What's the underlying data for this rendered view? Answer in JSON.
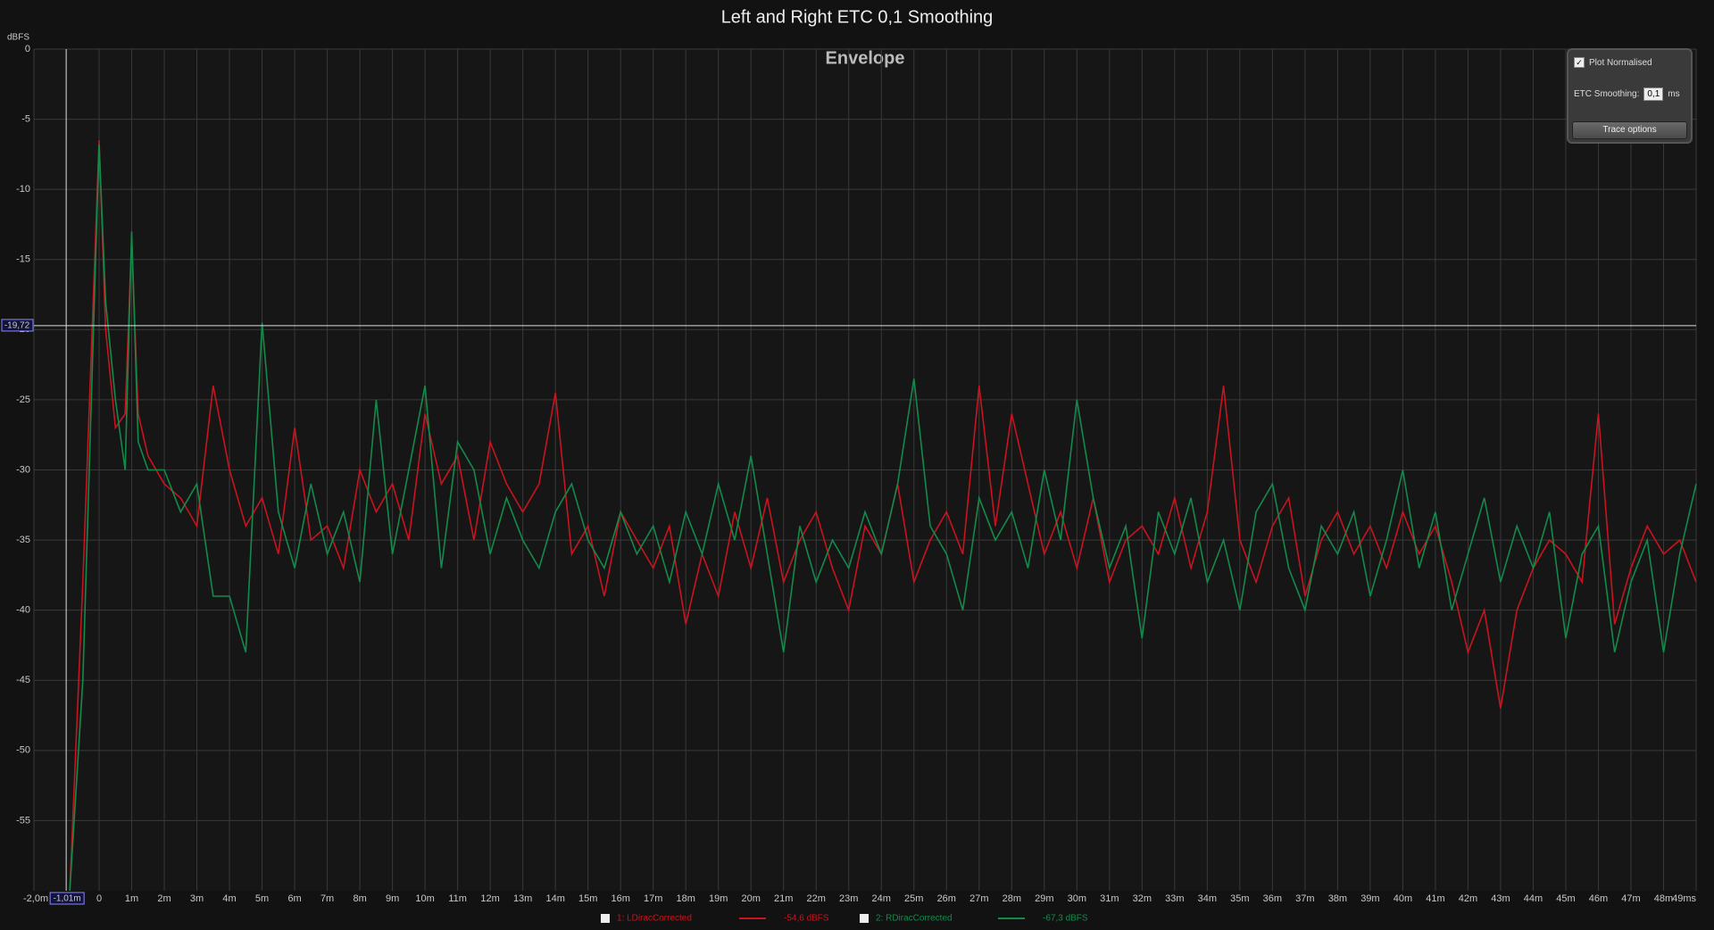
{
  "chart_data": {
    "type": "line",
    "title": "Left and Right ETC 0,1 Smoothing",
    "subtitle": "Envelope",
    "y_label": "dBFS",
    "x": [
      -0.9,
      -0.5,
      0,
      0.2,
      0.5,
      0.8,
      1.0,
      1.2,
      1.5,
      2,
      2.5,
      3,
      3.5,
      4,
      4.5,
      5,
      5.5,
      6,
      6.5,
      7,
      7.5,
      8,
      8.5,
      9,
      9.5,
      10,
      10.5,
      11,
      11.5,
      12,
      12.5,
      13,
      13.5,
      14,
      14.5,
      15,
      15.5,
      16,
      16.5,
      17,
      17.5,
      18,
      18.5,
      19,
      19.5,
      20,
      20.5,
      21,
      21.5,
      22,
      22.5,
      23,
      23.5,
      24,
      24.5,
      25,
      25.5,
      26,
      26.5,
      27,
      27.5,
      28,
      28.5,
      29,
      29.5,
      30,
      30.5,
      31,
      31.5,
      32,
      32.5,
      33,
      33.5,
      34,
      34.5,
      35,
      35.5,
      36,
      36.5,
      37,
      37.5,
      38,
      38.5,
      39,
      39.5,
      40,
      40.5,
      41,
      41.5,
      42,
      42.5,
      43,
      43.5,
      44,
      44.5,
      45,
      45.5,
      46,
      46.5,
      47,
      47.5,
      48,
      48.5,
      49
    ],
    "series": [
      {
        "name": "1: LDiracCorrected",
        "color": "#c8141e",
        "level": -54.6,
        "level_label": "-54,6 dBFS",
        "values": [
          -60,
          -38,
          -6.5,
          -20,
          -27,
          -26,
          -13.5,
          -26,
          -29,
          -31,
          -32,
          -34,
          -24,
          -30,
          -34,
          -32,
          -36,
          -27,
          -35,
          -34,
          -37,
          -30,
          -33,
          -31,
          -35,
          -26,
          -31,
          -29,
          -35,
          -28,
          -31,
          -33,
          -31,
          -24.5,
          -36,
          -34,
          -39,
          -33,
          -35,
          -37,
          -34,
          -41,
          -36,
          -39,
          -33,
          -37,
          -32,
          -38,
          -35,
          -33,
          -37,
          -40,
          -34,
          -36,
          -31,
          -38,
          -35,
          -33,
          -36,
          -24,
          -34,
          -26,
          -31,
          -36,
          -33,
          -37,
          -32,
          -38,
          -35,
          -34,
          -36,
          -32,
          -37,
          -33,
          -24,
          -35,
          -38,
          -34,
          -32,
          -39,
          -35,
          -33,
          -36,
          -34,
          -37,
          -33,
          -36,
          -34,
          -38,
          -43,
          -40,
          -47,
          -40,
          -37,
          -35,
          -36,
          -38,
          -26,
          -41,
          -37,
          -34,
          -36,
          -35,
          -38
        ]
      },
      {
        "name": "2: RDiracCorrected",
        "color": "#138a4a",
        "level": -67.3,
        "level_label": "-67,3 dBFS",
        "values": [
          -60,
          -45,
          -6.8,
          -18,
          -25,
          -30,
          -13,
          -28,
          -30,
          -30,
          -33,
          -31,
          -39,
          -39,
          -43,
          -19.5,
          -33,
          -37,
          -31,
          -36,
          -33,
          -38,
          -25,
          -36,
          -30,
          -24,
          -37,
          -28,
          -30,
          -36,
          -32,
          -35,
          -37,
          -33,
          -31,
          -35,
          -37,
          -33,
          -36,
          -34,
          -38,
          -33,
          -36,
          -31,
          -35,
          -29,
          -36,
          -43,
          -34,
          -38,
          -35,
          -37,
          -33,
          -36,
          -31,
          -23.5,
          -34,
          -36,
          -40,
          -32,
          -35,
          -33,
          -37,
          -30,
          -35,
          -25,
          -32,
          -37,
          -34,
          -42,
          -33,
          -36,
          -32,
          -38,
          -35,
          -40,
          -33,
          -31,
          -37,
          -40,
          -34,
          -36,
          -33,
          -39,
          -35,
          -30,
          -37,
          -33,
          -40,
          -36,
          -32,
          -38,
          -34,
          -37,
          -33,
          -42,
          -36,
          -34,
          -43,
          -38,
          -35,
          -43,
          -36,
          -31
        ]
      }
    ],
    "xlim": [
      -2,
      49
    ],
    "ylim": [
      -60,
      0
    ],
    "xticks": [
      {
        "value": -2,
        "label": "-2,0m"
      },
      0,
      {
        "value": 1,
        "label": "1m"
      },
      {
        "value": 2,
        "label": "2m"
      },
      {
        "value": 3,
        "label": "3m"
      },
      {
        "value": 4,
        "label": "4m"
      },
      {
        "value": 5,
        "label": "5m"
      },
      {
        "value": 6,
        "label": "6m"
      },
      {
        "value": 7,
        "label": "7m"
      },
      {
        "value": 8,
        "label": "8m"
      },
      {
        "value": 9,
        "label": "9m"
      },
      {
        "value": 10,
        "label": "10m"
      },
      {
        "value": 11,
        "label": "11m"
      },
      {
        "value": 12,
        "label": "12m"
      },
      {
        "value": 13,
        "label": "13m"
      },
      {
        "value": 14,
        "label": "14m"
      },
      {
        "value": 15,
        "label": "15m"
      },
      {
        "value": 16,
        "label": "16m"
      },
      {
        "value": 17,
        "label": "17m"
      },
      {
        "value": 18,
        "label": "18m"
      },
      {
        "value": 19,
        "label": "19m"
      },
      {
        "value": 20,
        "label": "20m"
      },
      {
        "value": 21,
        "label": "21m"
      },
      {
        "value": 22,
        "label": "22m"
      },
      {
        "value": 23,
        "label": "23m"
      },
      {
        "value": 24,
        "label": "24m"
      },
      {
        "value": 25,
        "label": "25m"
      },
      {
        "value": 26,
        "label": "26m"
      },
      {
        "value": 27,
        "label": "27m"
      },
      {
        "value": 28,
        "label": "28m"
      },
      {
        "value": 29,
        "label": "29m"
      },
      {
        "value": 30,
        "label": "30m"
      },
      {
        "value": 31,
        "label": "31m"
      },
      {
        "value": 32,
        "label": "32m"
      },
      {
        "value": 33,
        "label": "33m"
      },
      {
        "value": 34,
        "label": "34m"
      },
      {
        "value": 35,
        "label": "35m"
      },
      {
        "value": 36,
        "label": "36m"
      },
      {
        "value": 37,
        "label": "37m"
      },
      {
        "value": 38,
        "label": "38m"
      },
      {
        "value": 39,
        "label": "39m"
      },
      {
        "value": 40,
        "label": "40m"
      },
      {
        "value": 41,
        "label": "41m"
      },
      {
        "value": 42,
        "label": "42m"
      },
      {
        "value": 43,
        "label": "43m"
      },
      {
        "value": 44,
        "label": "44m"
      },
      {
        "value": 45,
        "label": "45m"
      },
      {
        "value": 46,
        "label": "46m"
      },
      {
        "value": 47,
        "label": "47m"
      },
      {
        "value": 48,
        "label": "48m"
      },
      {
        "value": 49,
        "label": "49ms"
      }
    ],
    "yticks": [
      0,
      -5,
      -10,
      -15,
      {
        "value": -20,
        "label": "-20"
      },
      -25,
      -30,
      -35,
      -40,
      -45,
      -50,
      -55
    ],
    "grid": true,
    "cursor": {
      "x": -1.01,
      "x_label": "-1,01m",
      "y": -19.72,
      "y_label": "-19,72"
    }
  },
  "panel": {
    "plot_normalised": "Plot Normalised",
    "smoothing_label": "ETC Smoothing:",
    "smoothing_value": "0,1",
    "smoothing_unit": "ms",
    "button": "Trace options"
  }
}
